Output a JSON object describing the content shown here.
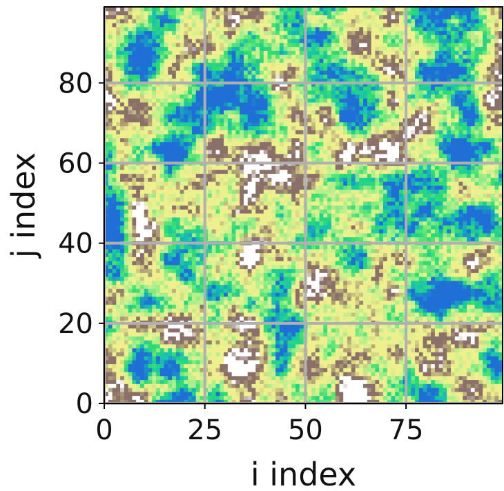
{
  "chart_data": {
    "type": "heatmap",
    "title": "",
    "xlabel": "i index",
    "ylabel": "j index",
    "xlim": [
      0,
      99
    ],
    "ylim": [
      0,
      99
    ],
    "xticks": [
      0,
      25,
      50,
      75
    ],
    "yticks": [
      0,
      20,
      40,
      60,
      80
    ],
    "grid": true,
    "grid_color": "#b0b0b0",
    "grid_size": [
      100,
      100
    ],
    "colormap": "terrain",
    "colors": {
      "deep": "#1f6fd6",
      "shallow": "#16c3b0",
      "low": "#2fdc70",
      "mid": "#a7ef8b",
      "high": "#eef08e",
      "peak": "#8a7068",
      "snow": "#ffffff"
    }
  }
}
